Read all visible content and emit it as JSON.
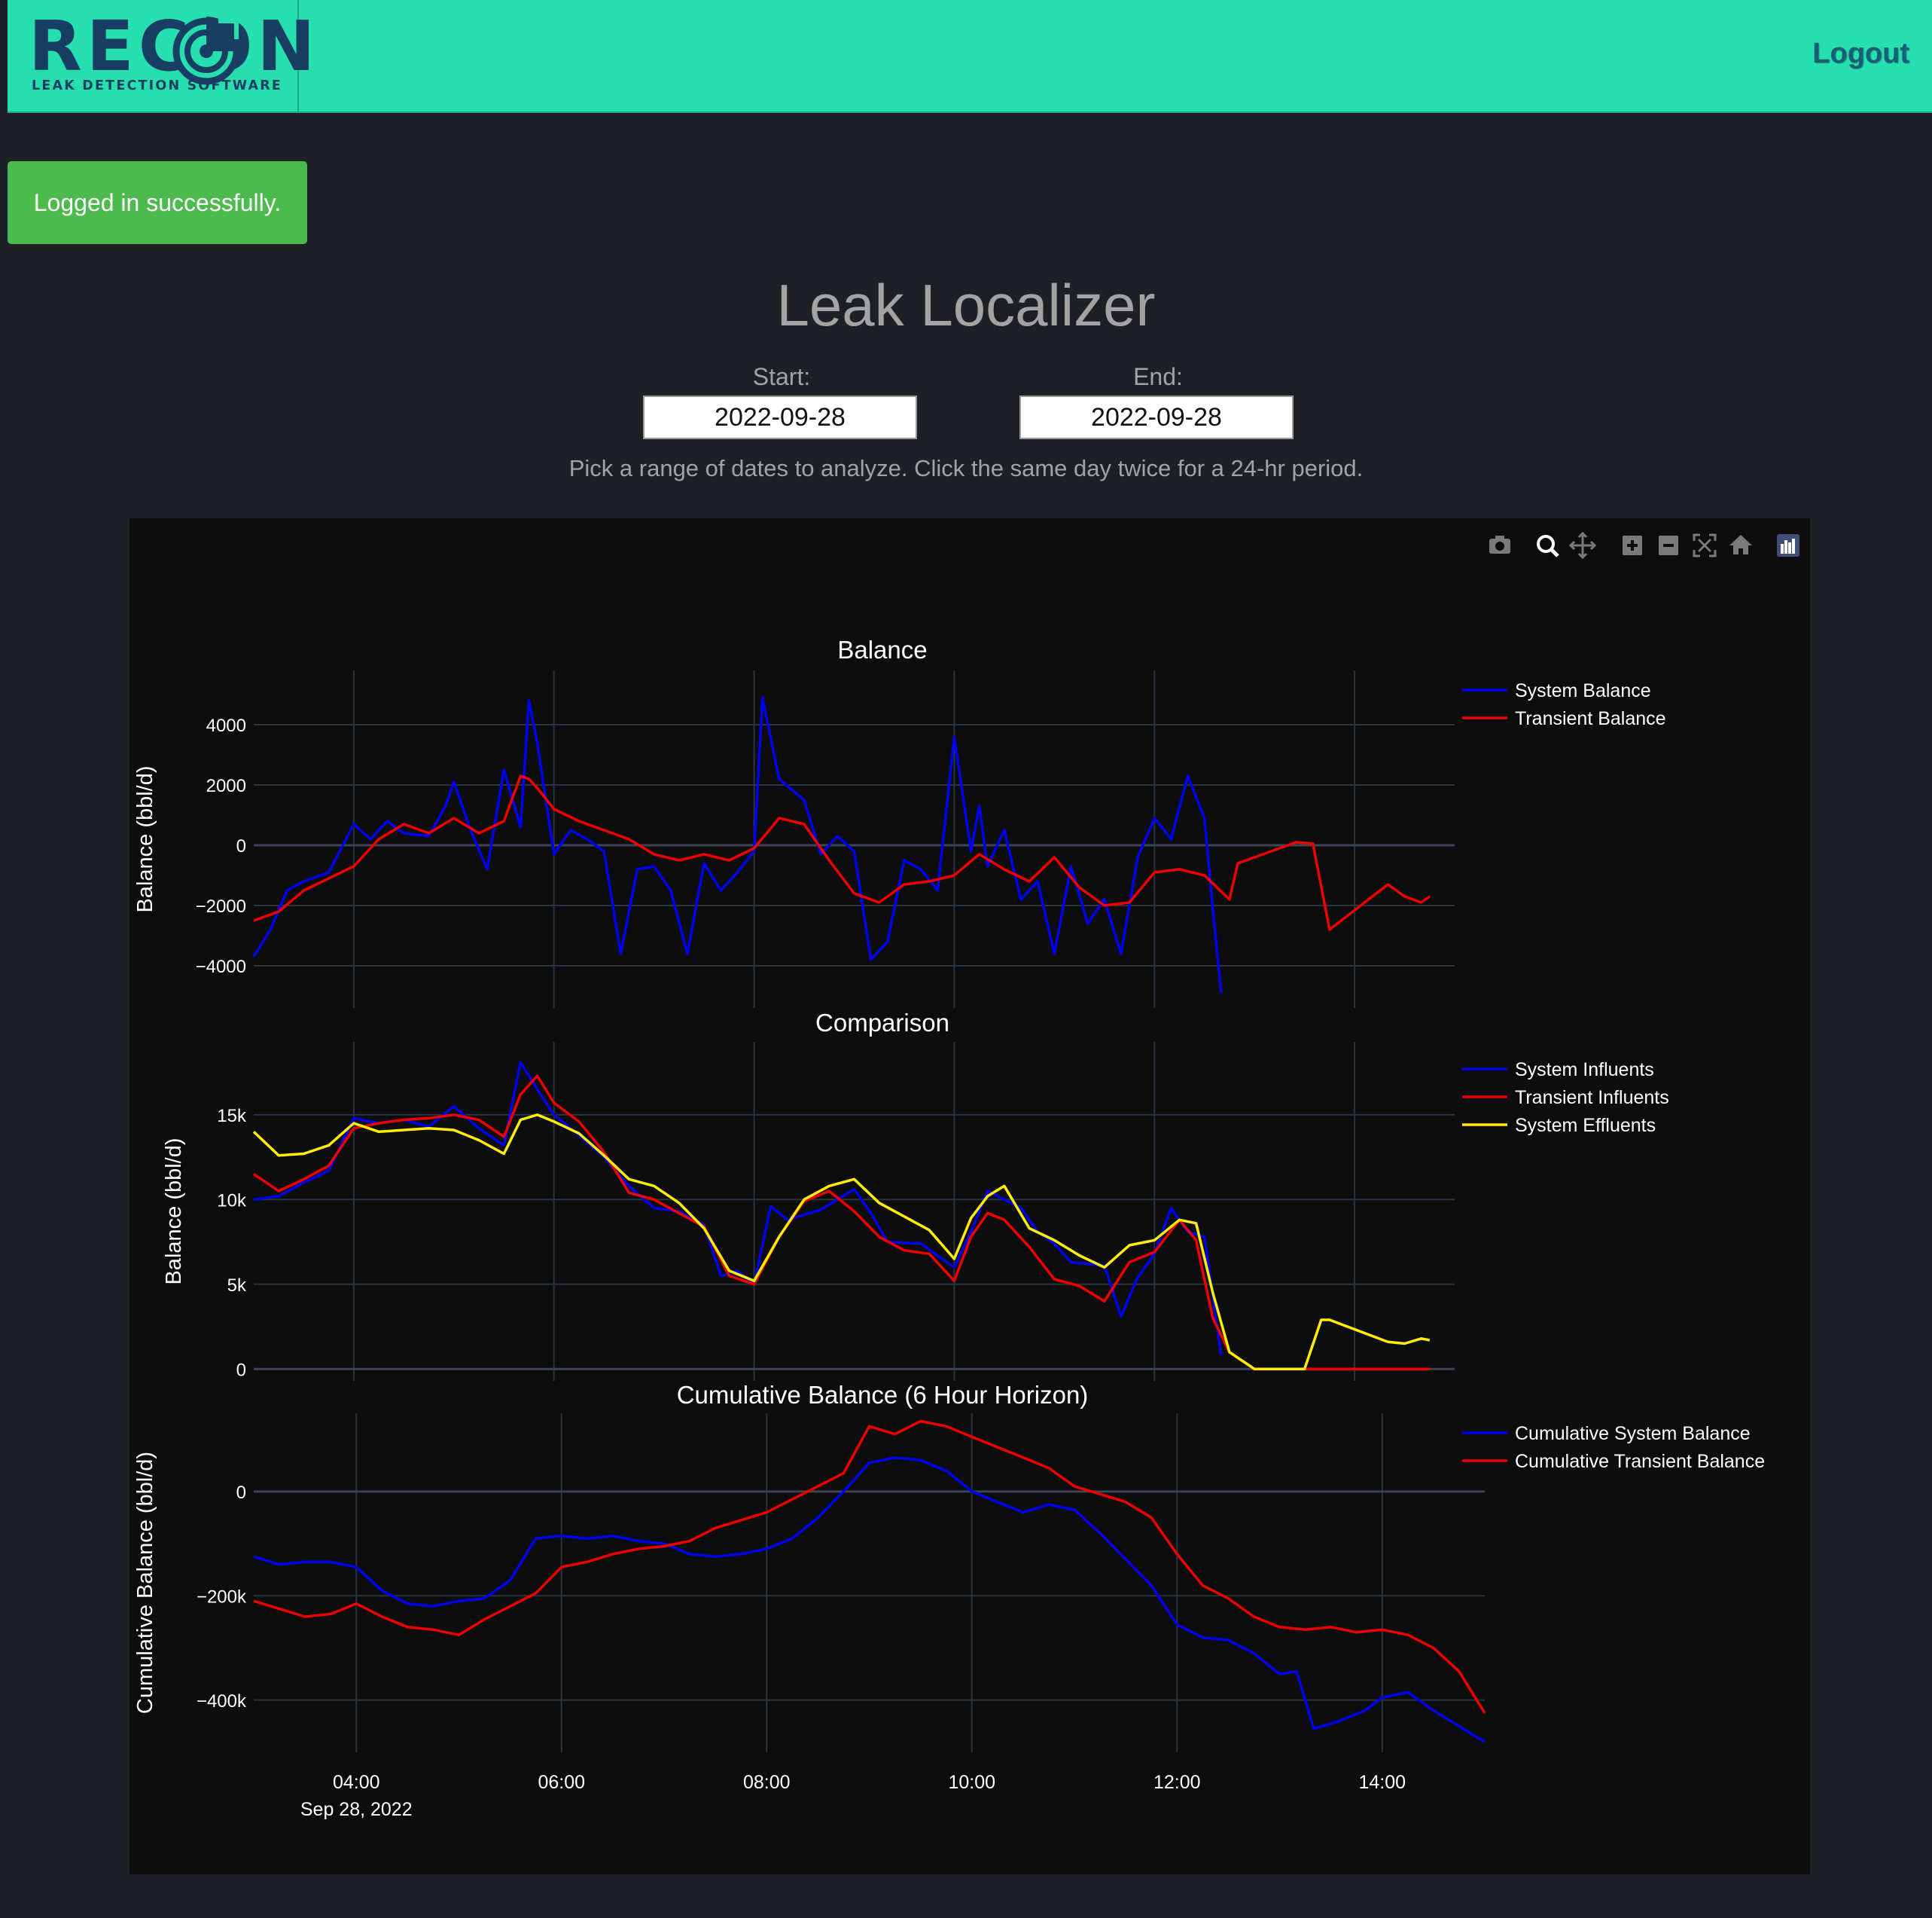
{
  "nav": {
    "brand": "RECON",
    "tagline": "LEAK DETECTION SOFTWARE",
    "logout_label": "Logout"
  },
  "flash": {
    "message": "Logged in successfully."
  },
  "page": {
    "title": "Leak Localizer",
    "start_label": "Start:",
    "end_label": "End:",
    "start_value": "2022-09-28",
    "end_value": "2022-09-28",
    "hint": "Pick a range of dates to analyze. Click the same day twice for a 24-hr period."
  },
  "colors": {
    "accent": "#25e0ae",
    "flash_bg": "#4cba4c",
    "plot_bg": "#0d0d0d",
    "blue_series": "#0000ee",
    "red_series": "#ee0000",
    "yellow_series": "#ffee00"
  },
  "modebar": [
    "camera-icon",
    "zoom-icon",
    "pan-icon",
    "zoom-in-icon",
    "zoom-out-icon",
    "autoscale-icon",
    "reset-axes-icon",
    "plotly-logo-icon"
  ],
  "chart_data": [
    {
      "type": "line",
      "title": "Balance",
      "ylabel": "Balance (bbl/d)",
      "ylim": [
        -5400,
        5800
      ],
      "yticks": [
        -4000,
        -2000,
        0,
        2000,
        4000
      ],
      "yticklabels": [
        "−4000",
        "−2000",
        "0",
        "2000",
        "4000"
      ],
      "legend": "top-right",
      "series": [
        {
          "name": "System Balance",
          "color": "#0000ee",
          "x": [
            "03:00",
            "03:10",
            "03:20",
            "03:30",
            "03:45",
            "04:00",
            "04:10",
            "04:20",
            "04:30",
            "04:45",
            "04:55",
            "05:00",
            "05:10",
            "05:20",
            "05:30",
            "05:40",
            "05:45",
            "05:50",
            "06:00",
            "06:10",
            "06:20",
            "06:30",
            "06:40",
            "06:50",
            "07:00",
            "07:10",
            "07:20",
            "07:30",
            "07:40",
            "07:50",
            "08:00",
            "08:05",
            "08:15",
            "08:30",
            "08:40",
            "08:50",
            "09:00",
            "09:10",
            "09:20",
            "09:30",
            "09:40",
            "09:50",
            "10:00",
            "10:10",
            "10:15",
            "10:20",
            "10:30",
            "10:40",
            "10:50",
            "11:00",
            "11:10",
            "11:20",
            "11:30",
            "11:40",
            "11:50",
            "12:00",
            "12:10",
            "12:20",
            "12:30",
            "12:35",
            "12:40"
          ],
          "y": [
            -3700,
            -2800,
            -1500,
            -1200,
            -900,
            700,
            200,
            800,
            400,
            300,
            1300,
            2100,
            500,
            -800,
            2500,
            600,
            4800,
            3400,
            -300,
            500,
            200,
            -200,
            -3600,
            -800,
            -700,
            -1500,
            -3600,
            -600,
            -1500,
            -900,
            -200,
            4900,
            2200,
            1500,
            -300,
            300,
            -200,
            -3800,
            -3200,
            -500,
            -800,
            -1500,
            3600,
            -200,
            1300,
            -700,
            500,
            -1800,
            -1200,
            -3600,
            -700,
            -2600,
            -1800,
            -3600,
            -400,
            900,
            200,
            2300,
            900,
            -2100,
            -4900
          ]
        },
        {
          "name": "Transient Balance",
          "color": "#ee0000",
          "x": [
            "03:00",
            "03:15",
            "03:30",
            "03:45",
            "04:00",
            "04:15",
            "04:30",
            "04:45",
            "05:00",
            "05:15",
            "05:30",
            "05:40",
            "05:45",
            "05:50",
            "06:00",
            "06:15",
            "06:30",
            "06:45",
            "07:00",
            "07:15",
            "07:30",
            "07:45",
            "08:00",
            "08:15",
            "08:30",
            "08:45",
            "09:00",
            "09:15",
            "09:30",
            "09:45",
            "10:00",
            "10:15",
            "10:30",
            "10:45",
            "11:00",
            "11:15",
            "11:30",
            "11:45",
            "12:00",
            "12:15",
            "12:30",
            "12:45",
            "12:50",
            "13:25",
            "13:35",
            "13:45",
            "14:20",
            "14:30",
            "14:40",
            "14:45"
          ],
          "y": [
            -2500,
            -2200,
            -1500,
            -1100,
            -700,
            200,
            700,
            400,
            900,
            400,
            800,
            2300,
            2200,
            1900,
            1200,
            800,
            500,
            200,
            -300,
            -500,
            -300,
            -500,
            -100,
            900,
            700,
            -500,
            -1600,
            -1900,
            -1300,
            -1200,
            -1000,
            -300,
            -800,
            -1200,
            -400,
            -1400,
            -2000,
            -1900,
            -900,
            -800,
            -1000,
            -1800,
            -600,
            100,
            50,
            -2800,
            -1300,
            -1700,
            -1900,
            -1700
          ]
        }
      ]
    },
    {
      "type": "line",
      "title": "Comparison",
      "ylabel": "Balance (bbl/d)",
      "ylim": [
        -700,
        19300
      ],
      "yticks": [
        0,
        5000,
        10000,
        15000
      ],
      "yticklabels": [
        "0",
        "5k",
        "10k",
        "15k"
      ],
      "legend": "top-right",
      "series": [
        {
          "name": "System Influents",
          "color": "#0000ee",
          "x": [
            "03:00",
            "03:15",
            "03:30",
            "03:45",
            "04:00",
            "04:15",
            "04:30",
            "04:45",
            "05:00",
            "05:15",
            "05:30",
            "05:40",
            "05:50",
            "06:00",
            "06:15",
            "06:30",
            "06:45",
            "07:00",
            "07:15",
            "07:30",
            "07:40",
            "07:50",
            "08:00",
            "08:10",
            "08:20",
            "08:40",
            "09:00",
            "09:10",
            "09:20",
            "09:40",
            "10:00",
            "10:10",
            "10:20",
            "10:40",
            "10:50",
            "11:00",
            "11:10",
            "11:30",
            "11:40",
            "11:50",
            "12:00",
            "12:10",
            "12:20",
            "12:30",
            "12:40"
          ],
          "y": [
            10000,
            10200,
            11000,
            11700,
            14800,
            14500,
            14700,
            14300,
            15500,
            14200,
            13200,
            18100,
            16500,
            15000,
            13800,
            12500,
            10800,
            9500,
            9300,
            8500,
            5500,
            5800,
            5000,
            9600,
            8800,
            9400,
            10600,
            9200,
            7500,
            7400,
            6000,
            8100,
            10500,
            9500,
            8100,
            7400,
            6300,
            6100,
            3100,
            5400,
            6800,
            9500,
            8100,
            7800,
            800
          ]
        },
        {
          "name": "Transient Influents",
          "color": "#ee0000",
          "x": [
            "03:00",
            "03:15",
            "03:30",
            "03:45",
            "04:00",
            "04:15",
            "04:30",
            "04:45",
            "05:00",
            "05:15",
            "05:30",
            "05:40",
            "05:50",
            "06:00",
            "06:15",
            "06:30",
            "06:45",
            "07:00",
            "07:15",
            "07:30",
            "07:45",
            "08:00",
            "08:15",
            "08:30",
            "08:45",
            "09:00",
            "09:15",
            "09:30",
            "09:45",
            "10:00",
            "10:10",
            "10:20",
            "10:30",
            "10:45",
            "11:00",
            "11:15",
            "11:30",
            "11:45",
            "12:00",
            "12:15",
            "12:25",
            "12:35",
            "12:45",
            "13:00",
            "13:30",
            "14:00",
            "14:30",
            "14:45"
          ],
          "y": [
            11500,
            10500,
            11200,
            12000,
            14200,
            14500,
            14700,
            14800,
            15000,
            14700,
            13700,
            16200,
            17300,
            15700,
            14600,
            12800,
            10400,
            10000,
            9200,
            8400,
            5500,
            5000,
            7800,
            9900,
            10500,
            9300,
            7800,
            7000,
            6800,
            5200,
            7800,
            9200,
            8800,
            7200,
            5300,
            4900,
            4000,
            6300,
            6900,
            8800,
            7600,
            3000,
            1000,
            0,
            0,
            0,
            0,
            0
          ]
        },
        {
          "name": "System Effluents",
          "color": "#ffee00",
          "x": [
            "03:00",
            "03:15",
            "03:30",
            "03:45",
            "04:00",
            "04:15",
            "04:30",
            "04:45",
            "05:00",
            "05:15",
            "05:30",
            "05:40",
            "05:50",
            "06:00",
            "06:15",
            "06:30",
            "06:45",
            "07:00",
            "07:15",
            "07:30",
            "07:45",
            "08:00",
            "08:15",
            "08:30",
            "08:45",
            "09:00",
            "09:15",
            "09:30",
            "09:45",
            "10:00",
            "10:10",
            "10:20",
            "10:30",
            "10:45",
            "11:00",
            "11:15",
            "11:30",
            "11:45",
            "12:00",
            "12:15",
            "12:25",
            "12:35",
            "12:45",
            "13:00",
            "13:30",
            "13:40",
            "13:45",
            "14:20",
            "14:30",
            "14:40",
            "14:45"
          ],
          "y": [
            14000,
            12600,
            12700,
            13200,
            14500,
            14000,
            14100,
            14200,
            14100,
            13500,
            12700,
            14700,
            15000,
            14600,
            13900,
            12600,
            11200,
            10800,
            9800,
            8300,
            5800,
            5200,
            7800,
            10000,
            10800,
            11200,
            9800,
            9000,
            8200,
            6500,
            8900,
            10200,
            10800,
            8300,
            7600,
            6700,
            6000,
            7300,
            7600,
            8800,
            8600,
            4500,
            1000,
            0,
            0,
            2900,
            2900,
            1600,
            1500,
            1800,
            1700
          ]
        }
      ]
    },
    {
      "type": "line",
      "title": "Cumulative Balance (6 Hour Horizon)",
      "ylabel": "Cumulative Balance (bbl/d)",
      "ylim": [
        -500000,
        150000
      ],
      "yticks": [
        -400000,
        -200000,
        0
      ],
      "yticklabels": [
        "−400k",
        "−200k",
        "0"
      ],
      "xticks": [
        "04:00",
        "06:00",
        "08:00",
        "10:00",
        "12:00",
        "14:00"
      ],
      "xsubtitle": "Sep 28, 2022",
      "legend": "top-right",
      "series": [
        {
          "name": "Cumulative System Balance",
          "color": "#0000ee",
          "x": [
            "03:00",
            "03:15",
            "03:30",
            "03:45",
            "04:00",
            "04:15",
            "04:30",
            "04:45",
            "05:00",
            "05:15",
            "05:30",
            "05:45",
            "06:00",
            "06:15",
            "06:30",
            "06:45",
            "07:00",
            "07:15",
            "07:30",
            "07:45",
            "08:00",
            "08:15",
            "08:30",
            "08:45",
            "09:00",
            "09:15",
            "09:30",
            "09:45",
            "10:00",
            "10:15",
            "10:30",
            "10:45",
            "11:00",
            "11:15",
            "11:30",
            "11:45",
            "12:00",
            "12:15",
            "12:30",
            "12:45",
            "13:00",
            "13:10",
            "13:20",
            "13:35",
            "13:50",
            "14:00",
            "14:15",
            "14:30",
            "14:45",
            "15:00"
          ],
          "y": [
            -125000,
            -140000,
            -135000,
            -135000,
            -145000,
            -190000,
            -215000,
            -220000,
            -210000,
            -205000,
            -170000,
            -90000,
            -85000,
            -90000,
            -85000,
            -95000,
            -100000,
            -120000,
            -125000,
            -120000,
            -110000,
            -90000,
            -50000,
            0,
            55000,
            65000,
            60000,
            40000,
            0,
            -20000,
            -40000,
            -25000,
            -35000,
            -80000,
            -130000,
            -180000,
            -255000,
            -280000,
            -285000,
            -310000,
            -350000,
            -345000,
            -455000,
            -440000,
            -420000,
            -395000,
            -385000,
            -420000,
            -450000,
            -480000
          ]
        },
        {
          "name": "Cumulative Transient Balance",
          "color": "#ee0000",
          "x": [
            "03:00",
            "03:15",
            "03:30",
            "03:45",
            "04:00",
            "04:15",
            "04:30",
            "04:45",
            "05:00",
            "05:15",
            "05:30",
            "05:45",
            "06:00",
            "06:15",
            "06:30",
            "06:45",
            "07:00",
            "07:15",
            "07:30",
            "07:45",
            "08:00",
            "08:15",
            "08:30",
            "08:45",
            "09:00",
            "09:15",
            "09:30",
            "09:45",
            "10:00",
            "10:15",
            "10:30",
            "10:45",
            "11:00",
            "11:15",
            "11:30",
            "11:45",
            "12:00",
            "12:15",
            "12:30",
            "12:45",
            "13:00",
            "13:15",
            "13:30",
            "13:45",
            "14:00",
            "14:15",
            "14:30",
            "14:45",
            "15:00"
          ],
          "y": [
            -210000,
            -225000,
            -240000,
            -235000,
            -215000,
            -240000,
            -260000,
            -265000,
            -275000,
            -245000,
            -220000,
            -195000,
            -145000,
            -135000,
            -120000,
            -110000,
            -105000,
            -95000,
            -70000,
            -55000,
            -40000,
            -15000,
            10000,
            35000,
            125000,
            110000,
            135000,
            125000,
            105000,
            85000,
            65000,
            45000,
            10000,
            -5000,
            -20000,
            -50000,
            -120000,
            -180000,
            -205000,
            -240000,
            -260000,
            -265000,
            -260000,
            -270000,
            -265000,
            -275000,
            -300000,
            -345000,
            -425000
          ]
        }
      ]
    }
  ]
}
